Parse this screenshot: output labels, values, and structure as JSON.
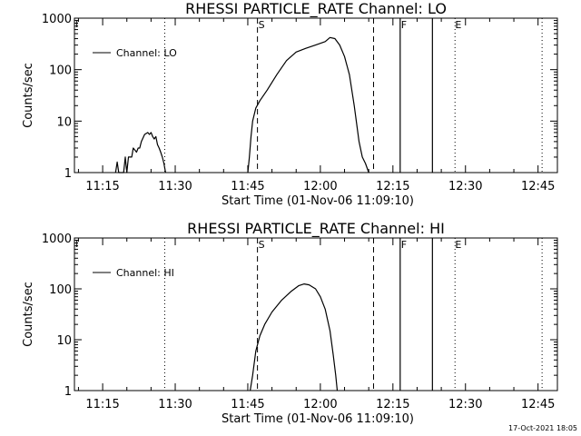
{
  "chart_data": [
    {
      "type": "line",
      "title": "RHESSI PARTICLE_RATE Channel: LO",
      "xlabel": "Start Time (01-Nov-06 11:09:10)",
      "ylabel": "Counts/sec",
      "y_scale": "log",
      "ylim": [
        1,
        1000
      ],
      "xlim": [
        "11:09:10",
        "12:49:00"
      ],
      "x_tick_labels": [
        "11:15",
        "11:30",
        "11:45",
        "12:00",
        "12:15",
        "12:30",
        "12:45"
      ],
      "y_tick_labels": [
        "1",
        "10",
        "100",
        "1000"
      ],
      "legend": {
        "entries": [
          "Channel: LO"
        ],
        "position": "top-left"
      },
      "markers": [
        {
          "time": "11:09:40",
          "label": ""
        },
        {
          "time": "11:47:00",
          "label": "S"
        },
        {
          "time": "12:11:00",
          "label": ""
        },
        {
          "time": "12:16:30",
          "label": "F"
        },
        {
          "time": "12:27:40",
          "label": "E"
        }
      ],
      "dotted_lines": [
        "11:27:50",
        "12:27:50",
        "12:45:50"
      ],
      "solid_lines": [
        "12:16:30",
        "12:23:10"
      ],
      "series": [
        {
          "name": "Channel: LO",
          "points": [
            [
              "11:17:40",
              1
            ],
            [
              "11:18:00",
              1.6
            ],
            [
              "11:18:20",
              1
            ],
            [
              "11:19:20",
              1
            ],
            [
              "11:19:40",
              2
            ],
            [
              "11:20:00",
              1
            ],
            [
              "11:20:20",
              2
            ],
            [
              "11:21:00",
              2
            ],
            [
              "11:21:20",
              3
            ],
            [
              "11:22:00",
              2.5
            ],
            [
              "11:22:20",
              3
            ],
            [
              "11:22:40",
              3
            ],
            [
              "11:23:00",
              4
            ],
            [
              "11:23:40",
              5.5
            ],
            [
              "11:24:20",
              6
            ],
            [
              "11:24:40",
              5.5
            ],
            [
              "11:25:00",
              6
            ],
            [
              "11:25:20",
              5
            ],
            [
              "11:25:40",
              4.5
            ],
            [
              "11:26:00",
              5
            ],
            [
              "11:26:20",
              3.5
            ],
            [
              "11:26:40",
              3
            ],
            [
              "11:27:00",
              2.5
            ],
            [
              "11:27:20",
              2
            ],
            [
              "11:27:40",
              1.5
            ],
            [
              "11:28:00",
              1
            ]
          ]
        },
        {
          "name": "Channel: LO",
          "points": [
            [
              "11:45:00",
              1
            ],
            [
              "11:45:20",
              2
            ],
            [
              "11:45:40",
              5
            ],
            [
              "11:46:00",
              10
            ],
            [
              "11:46:40",
              18
            ],
            [
              "11:47:30",
              25
            ],
            [
              "11:49:00",
              40
            ],
            [
              "11:51:00",
              80
            ],
            [
              "11:53:00",
              150
            ],
            [
              "11:55:00",
              220
            ],
            [
              "11:57:00",
              260
            ],
            [
              "11:59:00",
              300
            ],
            [
              "12:01:00",
              350
            ],
            [
              "12:02:00",
              420
            ],
            [
              "12:03:00",
              400
            ],
            [
              "12:04:00",
              300
            ],
            [
              "12:05:00",
              180
            ],
            [
              "12:06:00",
              80
            ],
            [
              "12:07:00",
              20
            ],
            [
              "12:08:00",
              4
            ],
            [
              "12:08:40",
              2
            ],
            [
              "12:09:20",
              1.5
            ],
            [
              "12:10:00",
              1
            ]
          ]
        }
      ]
    },
    {
      "type": "line",
      "title": "RHESSI PARTICLE_RATE Channel: HI",
      "xlabel": "Start Time (01-Nov-06 11:09:10)",
      "ylabel": "Counts/sec",
      "y_scale": "log",
      "ylim": [
        1,
        1000
      ],
      "xlim": [
        "11:09:10",
        "12:49:00"
      ],
      "x_tick_labels": [
        "11:15",
        "11:30",
        "11:45",
        "12:00",
        "12:15",
        "12:30",
        "12:45"
      ],
      "y_tick_labels": [
        "1",
        "10",
        "100",
        "1000"
      ],
      "legend": {
        "entries": [
          "Channel: HI"
        ],
        "position": "top-left"
      },
      "markers": [
        {
          "time": "11:09:40",
          "label": ""
        },
        {
          "time": "11:47:00",
          "label": "S"
        },
        {
          "time": "12:11:00",
          "label": ""
        },
        {
          "time": "12:16:30",
          "label": "F"
        },
        {
          "time": "12:27:40",
          "label": "E"
        }
      ],
      "dotted_lines": [
        "11:27:50",
        "12:27:50",
        "12:45:50"
      ],
      "solid_lines": [
        "12:16:30",
        "12:23:10"
      ],
      "series": [
        {
          "name": "Channel: HI",
          "points": [
            [
              "11:45:30",
              1
            ],
            [
              "11:46:00",
              2
            ],
            [
              "11:46:40",
              6
            ],
            [
              "11:47:30",
              12
            ],
            [
              "11:48:30",
              20
            ],
            [
              "11:50:00",
              35
            ],
            [
              "11:52:00",
              60
            ],
            [
              "11:54:00",
              90
            ],
            [
              "11:55:30",
              115
            ],
            [
              "11:56:40",
              125
            ],
            [
              "11:57:40",
              120
            ],
            [
              "11:59:00",
              100
            ],
            [
              "12:00:00",
              70
            ],
            [
              "12:01:00",
              40
            ],
            [
              "12:02:00",
              15
            ],
            [
              "12:02:40",
              5
            ],
            [
              "12:03:10",
              2
            ],
            [
              "12:03:30",
              1
            ]
          ]
        }
      ]
    }
  ],
  "footer": {
    "timestamp": "17-Oct-2021 18:05"
  }
}
